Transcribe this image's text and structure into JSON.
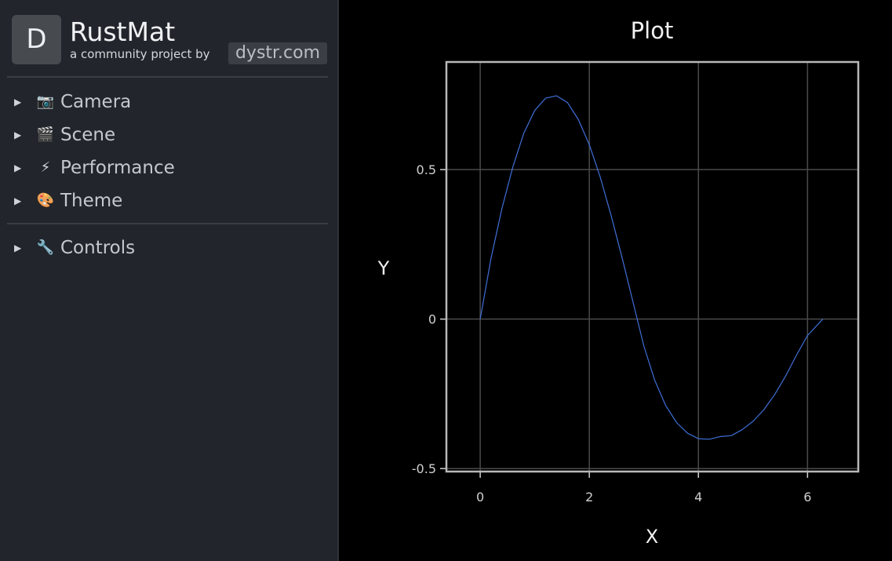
{
  "sidebar": {
    "logo_letter": "D",
    "app_name": "RustMat",
    "subtitle": "a community project by",
    "brand_link": "dystr.com",
    "sections": [
      {
        "label": "Camera",
        "icon": "camera-icon",
        "glyph": "📷"
      },
      {
        "label": "Scene",
        "icon": "clapperboard-icon",
        "glyph": "🎬"
      },
      {
        "label": "Performance",
        "icon": "lightning-icon",
        "glyph": "⚡"
      },
      {
        "label": "Theme",
        "icon": "palette-icon",
        "glyph": "🎨"
      },
      {
        "label": "Controls",
        "icon": "wrench-icon",
        "glyph": "🔧"
      }
    ]
  },
  "chart_data": {
    "type": "line",
    "title": "Plot",
    "xlabel": "X",
    "ylabel": "Y",
    "xlim": [
      -0.62,
      6.93
    ],
    "ylim": [
      -0.51,
      0.86
    ],
    "xticks": [
      0,
      2,
      4,
      6
    ],
    "yticks": [
      -0.5,
      0,
      0.5
    ],
    "ytick_labels": [
      "-0.5",
      "0",
      "0.5"
    ],
    "grid": true,
    "series": [
      {
        "color": "#3f6fd8",
        "x": [
          0,
          0.2,
          0.4,
          0.6,
          0.8,
          1.0,
          1.2,
          1.4,
          1.6,
          1.8,
          2.0,
          2.2,
          2.4,
          2.6,
          2.8,
          3.0,
          3.2,
          3.4,
          3.6,
          3.8,
          4.0,
          4.2,
          4.4,
          4.6,
          4.8,
          5.0,
          5.2,
          5.4,
          5.6,
          5.8,
          6.0,
          6.28
        ],
        "y": [
          0,
          0.205,
          0.371,
          0.51,
          0.622,
          0.698,
          0.739,
          0.747,
          0.724,
          0.667,
          0.583,
          0.475,
          0.346,
          0.206,
          0.058,
          -0.09,
          -0.205,
          -0.289,
          -0.346,
          -0.382,
          -0.4,
          -0.402,
          -0.393,
          -0.39,
          -0.37,
          -0.342,
          -0.303,
          -0.252,
          -0.19,
          -0.12,
          -0.055,
          0
        ]
      }
    ]
  }
}
